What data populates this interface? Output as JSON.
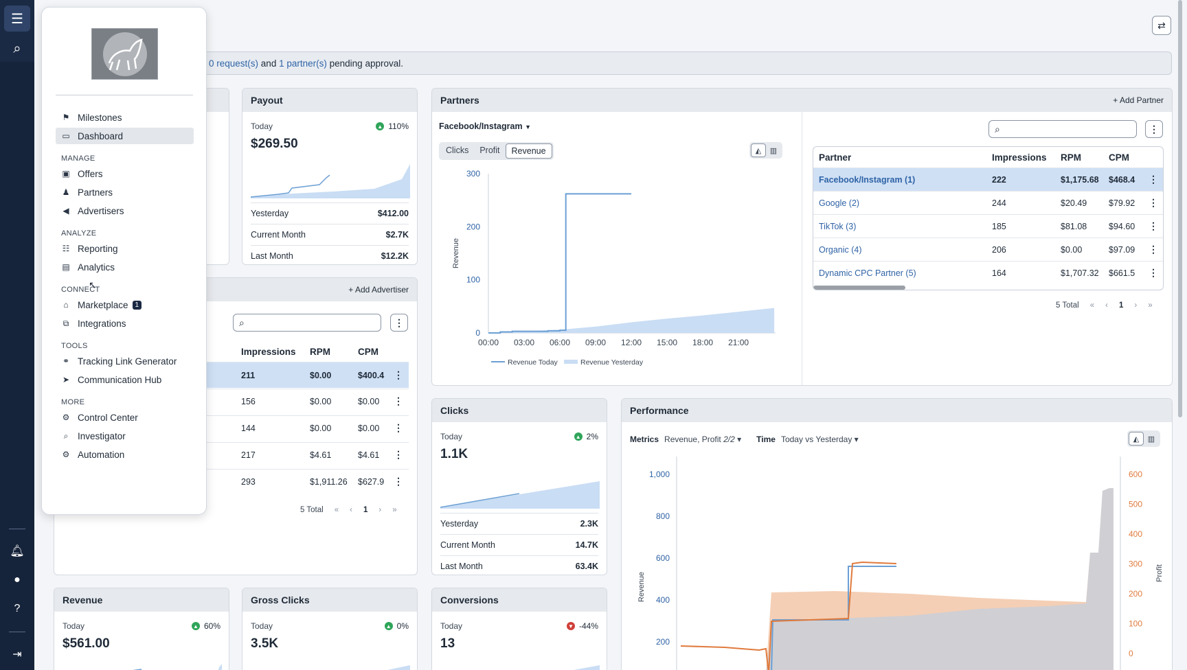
{
  "rail": {
    "icons": [
      "menu-icon",
      "search-icon",
      "bell-icon",
      "user-icon",
      "help-icon",
      "expand-icon"
    ]
  },
  "menu": {
    "top_items": [
      {
        "label": "Milestones",
        "icon": "flag-icon"
      },
      {
        "label": "Dashboard",
        "icon": "monitor-icon"
      }
    ],
    "sections": [
      {
        "title": "MANAGE",
        "items": [
          {
            "label": "Offers",
            "icon": "offers-icon"
          },
          {
            "label": "Partners",
            "icon": "partners-icon"
          },
          {
            "label": "Advertisers",
            "icon": "megaphone-icon"
          }
        ]
      },
      {
        "title": "ANALYZE",
        "items": [
          {
            "label": "Reporting",
            "icon": "reporting-icon"
          },
          {
            "label": "Analytics",
            "icon": "analytics-icon"
          }
        ]
      },
      {
        "title": "CONNECT",
        "items": [
          {
            "label": "Marketplace",
            "icon": "store-icon",
            "badge": "1"
          },
          {
            "label": "Integrations",
            "icon": "integrations-icon"
          }
        ]
      },
      {
        "title": "TOOLS",
        "items": [
          {
            "label": "Tracking Link Generator",
            "icon": "link-icon"
          },
          {
            "label": "Communication Hub",
            "icon": "send-icon"
          }
        ]
      },
      {
        "title": "MORE",
        "items": [
          {
            "label": "Control Center",
            "icon": "gear-icon"
          },
          {
            "label": "Investigator",
            "icon": "investigator-icon"
          },
          {
            "label": "Automation",
            "icon": "automation-icon"
          }
        ]
      }
    ]
  },
  "notice": {
    "requests": "0 request(s)",
    "and": "and",
    "partners": "1 partner(s)",
    "suffix": "pending approval."
  },
  "payout": {
    "title": "Payout",
    "today_label": "Today",
    "change": "110%",
    "value": "$269.50",
    "rows": [
      {
        "label": "Yesterday",
        "value": "$412.00"
      },
      {
        "label": "Current Month",
        "value": "$2.7K"
      },
      {
        "label": "Last Month",
        "value": "$12.2K"
      }
    ]
  },
  "advertisers": {
    "add_label": "Add Advertiser",
    "columns": [
      "Impressions",
      "RPM",
      "CPM"
    ],
    "rows": [
      {
        "impressions": "211",
        "rpm": "$0.00",
        "cpm": "$400.4"
      },
      {
        "impressions": "156",
        "rpm": "$0.00",
        "cpm": "$0.00"
      },
      {
        "impressions": "144",
        "rpm": "$0.00",
        "cpm": "$0.00"
      },
      {
        "impressions": "217",
        "rpm": "$4.61",
        "cpm": "$4.61"
      },
      {
        "impressions": "293",
        "rpm": "$1,911.26",
        "cpm": "$627.9"
      }
    ],
    "total": "5 Total",
    "page": "1"
  },
  "partners": {
    "title": "Partners",
    "add_label": "Add Partner",
    "dropdown": "Facebook/Instagram",
    "tabs": [
      "Clicks",
      "Profit",
      "Revenue"
    ],
    "active_tab": "Revenue",
    "columns": [
      "Partner",
      "Impressions",
      "RPM",
      "CPM"
    ],
    "rows": [
      {
        "partner": "Facebook/Instagram (1)",
        "impressions": "222",
        "rpm": "$1,175.68",
        "cpm": "$468.4"
      },
      {
        "partner": "Google (2)",
        "impressions": "244",
        "rpm": "$20.49",
        "cpm": "$79.92"
      },
      {
        "partner": "TikTok (3)",
        "impressions": "185",
        "rpm": "$81.08",
        "cpm": "$94.60"
      },
      {
        "partner": "Organic (4)",
        "impressions": "206",
        "rpm": "$0.00",
        "cpm": "$97.09"
      },
      {
        "partner": "Dynamic CPC Partner (5)",
        "impressions": "164",
        "rpm": "$1,707.32",
        "cpm": "$661.5"
      }
    ],
    "total": "5 Total",
    "page": "1"
  },
  "clicks": {
    "title": "Clicks",
    "today_label": "Today",
    "change": "2%",
    "value": "1.1K",
    "rows": [
      {
        "label": "Yesterday",
        "value": "2.3K"
      },
      {
        "label": "Current Month",
        "value": "14.7K"
      },
      {
        "label": "Last Month",
        "value": "63.4K"
      }
    ]
  },
  "performance": {
    "title": "Performance",
    "metrics_label": "Metrics",
    "metrics_value": "Revenue, Profit",
    "metrics_count": "2/2",
    "time_label": "Time",
    "time_value": "Today vs Yesterday"
  },
  "revenue_card": {
    "title": "Revenue",
    "today_label": "Today",
    "change": "60%",
    "value": "$561.00"
  },
  "gross_clicks": {
    "title": "Gross Clicks",
    "today_label": "Today",
    "change": "0%",
    "value": "3.5K"
  },
  "conversions": {
    "title": "Conversions",
    "today_label": "Today",
    "change": "-44%",
    "value": "13"
  },
  "colors": {
    "today": "#6b9fd4",
    "yesterday": "#c9ddf4",
    "profit": "#e07a3c",
    "profit_fill": "#f2c7a8"
  },
  "chart_data": [
    {
      "type": "line",
      "series": [
        {
          "name": "Revenue Today",
          "x": [
            "00:00",
            "01:00",
            "02:00",
            "03:00",
            "04:00",
            "05:00",
            "06:00",
            "06:30",
            "07:00",
            "08:00",
            "09:00",
            "10:00",
            "11:00",
            "12:00"
          ],
          "values": [
            0,
            2,
            3,
            3,
            3,
            4,
            5,
            262,
            262,
            262,
            262,
            262,
            262,
            262
          ]
        },
        {
          "name": "Revenue Yesterday",
          "x": [
            "00:00",
            "03:00",
            "06:00",
            "09:00",
            "12:00",
            "15:00",
            "18:00",
            "21:00",
            "24:00"
          ],
          "values": [
            0,
            3,
            6,
            12,
            20,
            27,
            33,
            40,
            47
          ]
        }
      ],
      "xticks": [
        "00:00",
        "03:00",
        "06:00",
        "09:00",
        "12:00",
        "15:00",
        "18:00",
        "21:00"
      ],
      "yticks": [
        "0",
        "100",
        "200",
        "300"
      ],
      "ylabel": "Revenue",
      "ylim": [
        0,
        300
      ],
      "legend": "bottom"
    },
    {
      "type": "area",
      "yticks_left": [
        "200",
        "400",
        "600",
        "800",
        "1,000"
      ],
      "yticks_right": [
        "0",
        "100",
        "200",
        "300",
        "400",
        "500",
        "600"
      ],
      "ylabel_left": "Revenue",
      "ylabel_right": "Profit"
    }
  ]
}
